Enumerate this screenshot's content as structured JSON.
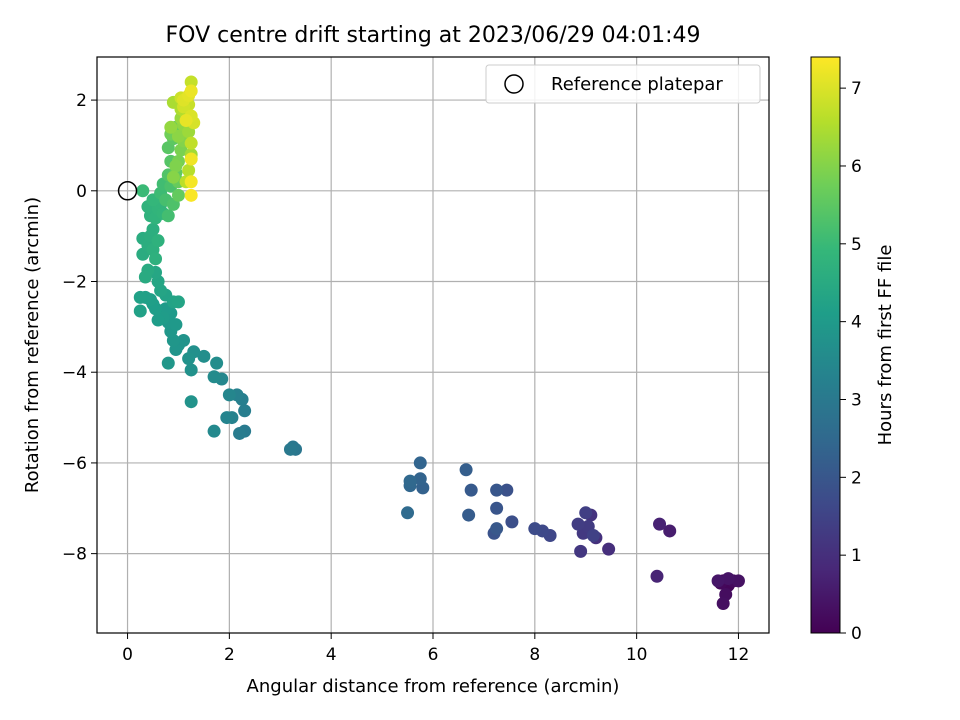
{
  "chart_data": {
    "type": "scatter",
    "title": "FOV centre drift starting at 2023/06/29 04:01:49",
    "xlabel": "Angular distance from reference (arcmin)",
    "ylabel": "Rotation from reference (arcmin)",
    "xlim": [
      -0.6,
      12.6
    ],
    "ylim": [
      -9.75,
      2.95
    ],
    "xticks": [
      "0",
      "2",
      "4",
      "6",
      "8",
      "10",
      "12"
    ],
    "yticks": [
      "−8",
      "−6",
      "−4",
      "−2",
      "0",
      "2"
    ],
    "grid": true,
    "legend": {
      "placement": "top-right",
      "entries": [
        "Reference platepar"
      ]
    },
    "colorbar": {
      "label": "Hours from first FF file",
      "range": [
        0,
        7.4
      ],
      "ticks": [
        "0",
        "1",
        "2",
        "3",
        "4",
        "5",
        "6",
        "7"
      ],
      "colormap": [
        "#440154",
        "#482878",
        "#3e4989",
        "#31688e",
        "#26828e",
        "#1f9e89",
        "#35b779",
        "#6ece58",
        "#b5de2b",
        "#fde725"
      ]
    },
    "reference": {
      "x": 0,
      "y": 0
    },
    "points": [
      [
        11.7,
        -8.6,
        0.05
      ],
      [
        11.8,
        -8.7,
        0.1
      ],
      [
        11.65,
        -8.65,
        0.15
      ],
      [
        11.9,
        -8.6,
        0.2
      ],
      [
        11.75,
        -8.9,
        0.25
      ],
      [
        11.7,
        -9.1,
        0.3
      ],
      [
        12.0,
        -8.6,
        0.35
      ],
      [
        11.8,
        -8.55,
        0.4
      ],
      [
        11.6,
        -8.6,
        0.45
      ],
      [
        10.65,
        -7.5,
        0.6
      ],
      [
        10.45,
        -7.35,
        0.7
      ],
      [
        10.4,
        -8.5,
        0.75
      ],
      [
        9.45,
        -7.9,
        1.0
      ],
      [
        9.2,
        -7.65,
        1.05
      ],
      [
        9.1,
        -7.15,
        1.1
      ],
      [
        9.0,
        -7.5,
        1.15
      ],
      [
        8.9,
        -7.95,
        1.2
      ],
      [
        8.95,
        -7.55,
        1.25
      ],
      [
        9.05,
        -7.4,
        1.3
      ],
      [
        8.85,
        -7.35,
        1.35
      ],
      [
        9.0,
        -7.1,
        1.4
      ],
      [
        9.15,
        -7.6,
        1.45
      ],
      [
        8.3,
        -7.6,
        1.6
      ],
      [
        8.15,
        -7.5,
        1.65
      ],
      [
        8.0,
        -7.45,
        1.7
      ],
      [
        7.55,
        -7.3,
        1.8
      ],
      [
        7.45,
        -6.6,
        1.85
      ],
      [
        7.2,
        -7.55,
        1.9
      ],
      [
        7.25,
        -7.0,
        1.95
      ],
      [
        7.25,
        -6.6,
        2.0
      ],
      [
        7.25,
        -7.45,
        2.05
      ],
      [
        6.75,
        -6.6,
        2.1
      ],
      [
        6.7,
        -7.15,
        2.15
      ],
      [
        6.65,
        -6.15,
        2.2
      ],
      [
        5.8,
        -6.55,
        2.3
      ],
      [
        5.75,
        -6.35,
        2.35
      ],
      [
        5.75,
        -6.0,
        2.4
      ],
      [
        5.55,
        -6.5,
        2.45
      ],
      [
        5.55,
        -6.4,
        2.5
      ],
      [
        5.5,
        -7.1,
        2.55
      ],
      [
        3.3,
        -5.7,
        2.9
      ],
      [
        3.25,
        -5.65,
        2.95
      ],
      [
        3.2,
        -5.7,
        3.0
      ],
      [
        2.3,
        -5.3,
        3.05
      ],
      [
        2.2,
        -5.35,
        3.1
      ],
      [
        2.3,
        -4.85,
        3.15
      ],
      [
        2.25,
        -4.6,
        3.2
      ],
      [
        2.15,
        -4.5,
        3.25
      ],
      [
        2.05,
        -5.0,
        3.3
      ],
      [
        1.95,
        -5.0,
        3.35
      ],
      [
        2.0,
        -4.5,
        3.4
      ],
      [
        1.85,
        -4.15,
        3.45
      ],
      [
        1.7,
        -5.3,
        3.5
      ],
      [
        1.7,
        -4.1,
        3.55
      ],
      [
        1.75,
        -3.8,
        3.6
      ],
      [
        1.5,
        -3.65,
        3.65
      ],
      [
        1.3,
        -3.55,
        3.7
      ],
      [
        1.25,
        -3.95,
        3.72
      ],
      [
        1.2,
        -3.7,
        3.75
      ],
      [
        1.25,
        -4.65,
        3.78
      ],
      [
        1.1,
        -3.3,
        3.8
      ],
      [
        1.0,
        -3.4,
        3.82
      ],
      [
        0.95,
        -3.5,
        3.85
      ],
      [
        0.9,
        -3.3,
        3.87
      ],
      [
        0.85,
        -3.1,
        3.9
      ],
      [
        0.8,
        -3.8,
        3.92
      ],
      [
        0.8,
        -2.9,
        3.95
      ],
      [
        0.95,
        -2.95,
        3.97
      ],
      [
        0.85,
        -2.7,
        4.0
      ],
      [
        0.75,
        -2.6,
        4.02
      ],
      [
        0.7,
        -2.8,
        4.05
      ],
      [
        0.6,
        -2.85,
        4.07
      ],
      [
        0.55,
        -2.6,
        4.1
      ],
      [
        0.5,
        -2.5,
        4.12
      ],
      [
        0.45,
        -2.4,
        4.15
      ],
      [
        0.35,
        -2.35,
        4.17
      ],
      [
        0.25,
        -2.35,
        4.2
      ],
      [
        0.25,
        -2.65,
        4.22
      ],
      [
        0.75,
        -2.3,
        4.25
      ],
      [
        0.9,
        -2.45,
        4.27
      ],
      [
        1.0,
        -2.45,
        4.3
      ],
      [
        0.65,
        -2.2,
        4.32
      ],
      [
        0.6,
        -2.0,
        4.35
      ],
      [
        0.55,
        -1.8,
        4.37
      ],
      [
        0.4,
        -1.75,
        4.5
      ],
      [
        0.35,
        -1.9,
        4.52
      ],
      [
        0.3,
        -1.4,
        4.55
      ],
      [
        0.3,
        -1.05,
        4.57
      ],
      [
        0.4,
        -1.2,
        4.6
      ],
      [
        0.45,
        -1.0,
        4.62
      ],
      [
        0.5,
        -0.85,
        4.65
      ],
      [
        0.5,
        -1.3,
        4.67
      ],
      [
        0.55,
        -1.5,
        4.7
      ],
      [
        0.6,
        -1.1,
        4.72
      ],
      [
        0.45,
        -0.55,
        4.75
      ],
      [
        0.4,
        -0.35,
        4.77
      ],
      [
        0.55,
        -0.6,
        4.8
      ],
      [
        0.6,
        -0.4,
        4.82
      ],
      [
        0.65,
        -0.3,
        4.85
      ],
      [
        0.7,
        -0.5,
        4.87
      ],
      [
        0.5,
        -0.2,
        4.9
      ],
      [
        0.3,
        0.0,
        5.0
      ],
      [
        0.65,
        -0.05,
        5.05
      ],
      [
        0.7,
        0.15,
        5.1
      ],
      [
        0.8,
        -0.55,
        5.15
      ],
      [
        0.75,
        -0.2,
        5.2
      ],
      [
        0.85,
        0.1,
        5.25
      ],
      [
        0.9,
        -0.3,
        5.3
      ],
      [
        0.8,
        0.35,
        5.35
      ],
      [
        0.85,
        0.65,
        5.4
      ],
      [
        0.8,
        0.95,
        5.45
      ],
      [
        0.9,
        1.15,
        5.5
      ],
      [
        0.95,
        0.4,
        5.55
      ],
      [
        1.0,
        -0.1,
        5.6
      ],
      [
        1.0,
        0.2,
        5.65
      ],
      [
        0.95,
        1.4,
        5.7
      ],
      [
        0.85,
        1.25,
        5.75
      ],
      [
        1.0,
        0.65,
        5.85
      ],
      [
        1.05,
        0.9,
        5.9
      ],
      [
        0.95,
        0.55,
        5.95
      ],
      [
        1.1,
        1.1,
        6.0
      ],
      [
        0.9,
        0.3,
        6.05
      ],
      [
        1.0,
        1.2,
        6.1
      ],
      [
        1.1,
        1.45,
        6.15
      ],
      [
        0.85,
        1.4,
        6.2
      ],
      [
        1.05,
        1.6,
        6.25
      ],
      [
        1.2,
        1.3,
        6.3
      ],
      [
        1.25,
        0.8,
        6.35
      ],
      [
        0.9,
        1.95,
        6.45
      ],
      [
        1.05,
        1.8,
        6.5
      ],
      [
        1.15,
        1.7,
        6.55
      ],
      [
        1.2,
        0.45,
        6.6
      ],
      [
        1.15,
        0.2,
        6.65
      ],
      [
        1.25,
        1.05,
        6.7
      ],
      [
        1.25,
        2.4,
        6.75
      ],
      [
        1.2,
        1.9,
        6.8
      ],
      [
        1.05,
        2.05,
        6.85
      ],
      [
        1.1,
        1.85,
        6.9
      ],
      [
        1.3,
        1.5,
        6.95
      ],
      [
        1.25,
        1.65,
        7.0
      ],
      [
        1.1,
        2.0,
        7.05
      ],
      [
        1.2,
        2.1,
        7.1
      ],
      [
        1.15,
        1.55,
        7.15
      ],
      [
        1.25,
        2.2,
        7.2
      ],
      [
        1.25,
        0.7,
        7.25
      ],
      [
        1.25,
        0.2,
        7.3
      ],
      [
        1.25,
        -0.1,
        7.35
      ]
    ]
  }
}
